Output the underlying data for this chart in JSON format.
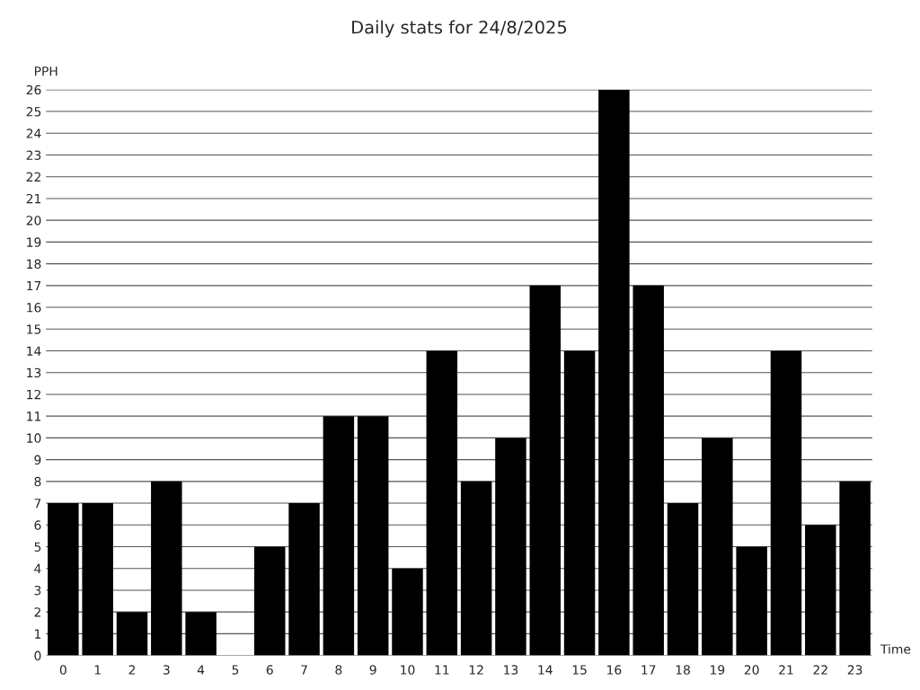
{
  "chart_data": {
    "type": "bar",
    "title": "Daily stats for 24/8/2025",
    "xlabel": "Time",
    "ylabel": "PPH",
    "categories": [
      "0",
      "1",
      "2",
      "3",
      "4",
      "5",
      "6",
      "7",
      "8",
      "9",
      "10",
      "11",
      "12",
      "13",
      "14",
      "15",
      "16",
      "17",
      "18",
      "19",
      "20",
      "21",
      "22",
      "23"
    ],
    "values": [
      7,
      7,
      2,
      8,
      2,
      0,
      5,
      7,
      11,
      11,
      4,
      14,
      8,
      10,
      17,
      14,
      26,
      17,
      7,
      10,
      5,
      14,
      6,
      8
    ],
    "color": "#000000",
    "ylim": [
      0,
      26
    ],
    "yticks": [
      0,
      1,
      2,
      3,
      4,
      5,
      6,
      7,
      8,
      9,
      10,
      11,
      12,
      13,
      14,
      15,
      16,
      17,
      18,
      19,
      20,
      21,
      22,
      23,
      24,
      25,
      26
    ],
    "grid": "y"
  }
}
